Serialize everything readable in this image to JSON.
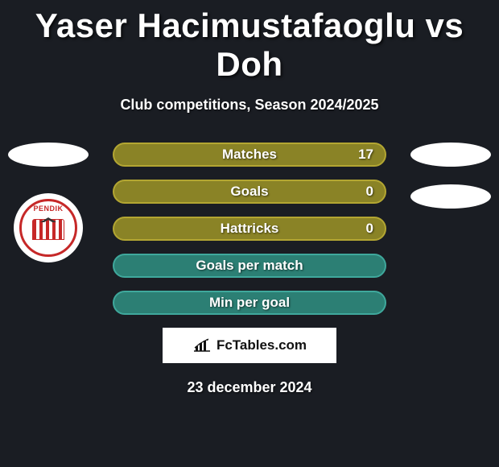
{
  "colors": {
    "background": "#1a1d23",
    "title": "#ffffff",
    "text_shadow": "rgba(0,0,0,0.7)",
    "row_olive_border": "#b3a632",
    "row_olive_bg": "#8a8326",
    "row_teal_border": "#3fa89c",
    "row_teal_bg": "#2c7f74",
    "oval": "#ffffff",
    "badge_red": "#c62828",
    "footer_bg": "#ffffff",
    "footer_text": "#111111"
  },
  "title": "Yaser Hacimustafaoglu vs Doh",
  "subtitle": "Club competitions, Season 2024/2025",
  "badge": {
    "name": "PENDIK"
  },
  "stats": [
    {
      "label": "Matches",
      "value": "17",
      "style": "olive"
    },
    {
      "label": "Goals",
      "value": "0",
      "style": "olive"
    },
    {
      "label": "Hattricks",
      "value": "0",
      "style": "olive"
    },
    {
      "label": "Goals per match",
      "value": "",
      "style": "teal"
    },
    {
      "label": "Min per goal",
      "value": "",
      "style": "teal"
    }
  ],
  "footer": {
    "brand": "FcTables.com"
  },
  "date": "23 december 2024"
}
